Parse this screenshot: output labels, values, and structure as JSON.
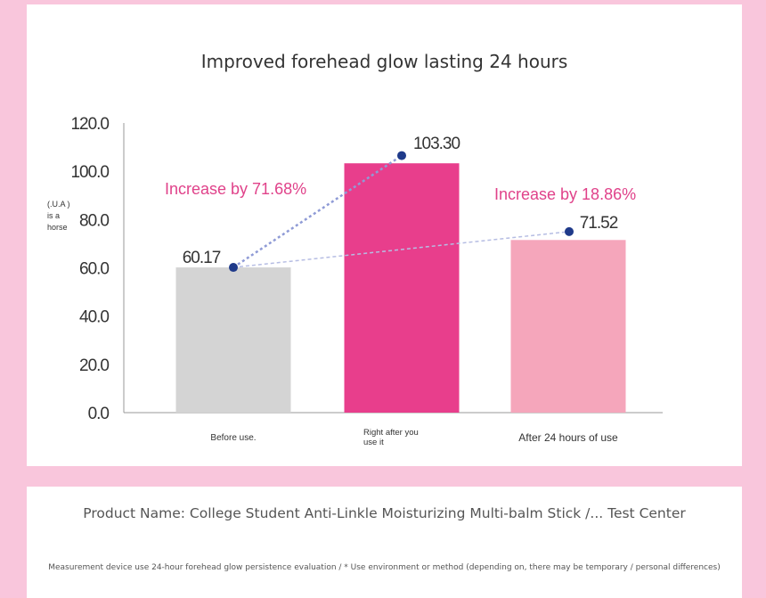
{
  "chart_data": {
    "type": "bar",
    "title": "Improved forehead glow lasting 24 hours",
    "ylabel": "(.U.A ) is a horse",
    "ylim": [
      0,
      120
    ],
    "yticks": [
      "0.0",
      "20.0",
      "40.0",
      "60.0",
      "80.0",
      "100.0",
      "120.0"
    ],
    "categories": [
      "Before use.",
      "Right after you use it",
      "After 24 hours of use"
    ],
    "values": [
      60.17,
      103.3,
      71.52
    ],
    "value_labels": [
      "60.17",
      "103.30",
      "71.52"
    ],
    "point_values": [
      60.17,
      106.5,
      75.0
    ],
    "annotations": [
      "Increase by 71.68%",
      "Increase by 18.86%"
    ],
    "grid": false,
    "colors": {
      "bars": [
        "#d4d4d4",
        "#e83e8c",
        "#f5a6bb"
      ],
      "points": "#1f3a8a",
      "annotation": "#e0428a",
      "axis": "#999999"
    }
  },
  "footer": {
    "product": "Product Name: College Student Anti-Linkle Moisturizing Multi-balm Stick /... Test Center",
    "note": "Measurement device use 24-hour forehead glow persistence evaluation / * Use environment or method (depending on, there may be temporary / personal differences)"
  }
}
